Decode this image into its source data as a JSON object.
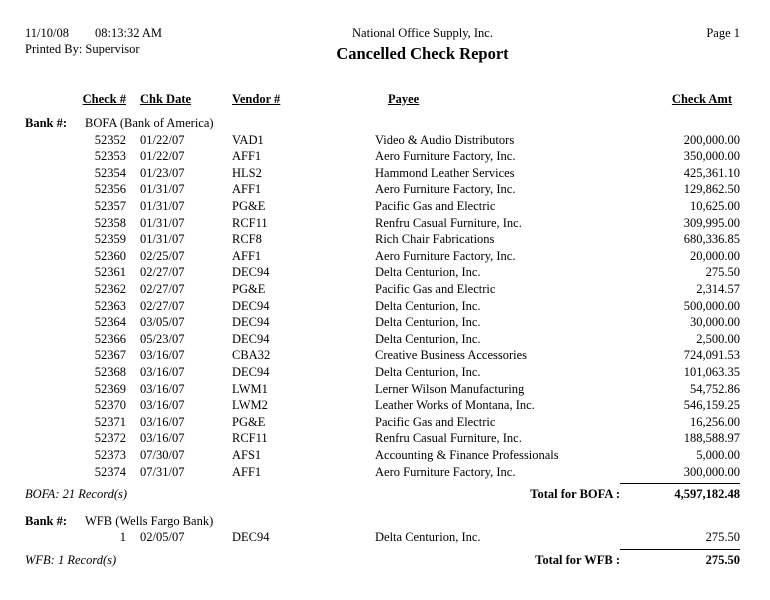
{
  "header": {
    "date": "11/10/08",
    "time": "08:13:32 AM",
    "printed_by": "Printed By: Supervisor",
    "company": "National Office Supply, Inc.",
    "title": "Cancelled Check Report",
    "page": "Page 1"
  },
  "columns": {
    "check": "Check #",
    "date": "Chk Date",
    "vendor": "Vendor #",
    "payee": "Payee",
    "amount": "Check Amt"
  },
  "bank_label": "Bank #:",
  "text_color": "#000000",
  "background_color": "#ffffff",
  "banks": [
    {
      "name": "BOFA (Bank of America)",
      "rows": [
        {
          "check": "52352",
          "date": "01/22/07",
          "vendor": "VAD1",
          "payee": "Video & Audio Distributors",
          "amount": "200,000.00"
        },
        {
          "check": "52353",
          "date": "01/22/07",
          "vendor": "AFF1",
          "payee": "Aero Furniture Factory, Inc.",
          "amount": "350,000.00"
        },
        {
          "check": "52354",
          "date": "01/23/07",
          "vendor": "HLS2",
          "payee": "Hammond Leather Services",
          "amount": "425,361.10"
        },
        {
          "check": "52356",
          "date": "01/31/07",
          "vendor": "AFF1",
          "payee": "Aero Furniture Factory, Inc.",
          "amount": "129,862.50"
        },
        {
          "check": "52357",
          "date": "01/31/07",
          "vendor": "PG&E",
          "payee": "Pacific Gas and Electric",
          "amount": "10,625.00"
        },
        {
          "check": "52358",
          "date": "01/31/07",
          "vendor": "RCF11",
          "payee": "Renfru Casual Furniture, Inc.",
          "amount": "309,995.00"
        },
        {
          "check": "52359",
          "date": "01/31/07",
          "vendor": "RCF8",
          "payee": "Rich Chair Fabrications",
          "amount": "680,336.85"
        },
        {
          "check": "52360",
          "date": "02/25/07",
          "vendor": "AFF1",
          "payee": "Aero Furniture Factory, Inc.",
          "amount": "20,000.00"
        },
        {
          "check": "52361",
          "date": "02/27/07",
          "vendor": "DEC94",
          "payee": "Delta Centurion, Inc.",
          "amount": "275.50"
        },
        {
          "check": "52362",
          "date": "02/27/07",
          "vendor": "PG&E",
          "payee": "Pacific Gas and Electric",
          "amount": "2,314.57"
        },
        {
          "check": "52363",
          "date": "02/27/07",
          "vendor": "DEC94",
          "payee": "Delta Centurion, Inc.",
          "amount": "500,000.00"
        },
        {
          "check": "52364",
          "date": "03/05/07",
          "vendor": "DEC94",
          "payee": "Delta Centurion, Inc.",
          "amount": "30,000.00"
        },
        {
          "check": "52366",
          "date": "05/23/07",
          "vendor": "DEC94",
          "payee": "Delta Centurion, Inc.",
          "amount": "2,500.00"
        },
        {
          "check": "52367",
          "date": "03/16/07",
          "vendor": "CBA32",
          "payee": "Creative Business Accessories",
          "amount": "724,091.53"
        },
        {
          "check": "52368",
          "date": "03/16/07",
          "vendor": "DEC94",
          "payee": "Delta Centurion, Inc.",
          "amount": "101,063.35"
        },
        {
          "check": "52369",
          "date": "03/16/07",
          "vendor": "LWM1",
          "payee": "Lerner Wilson Manufacturing",
          "amount": "54,752.86"
        },
        {
          "check": "52370",
          "date": "03/16/07",
          "vendor": "LWM2",
          "payee": "Leather Works of Montana, Inc.",
          "amount": "546,159.25"
        },
        {
          "check": "52371",
          "date": "03/16/07",
          "vendor": "PG&E",
          "payee": "Pacific Gas and Electric",
          "amount": "16,256.00"
        },
        {
          "check": "52372",
          "date": "03/16/07",
          "vendor": "RCF11",
          "payee": "Renfru Casual Furniture, Inc.",
          "amount": "188,588.97"
        },
        {
          "check": "52373",
          "date": "07/30/07",
          "vendor": "AFS1",
          "payee": "Accounting & Finance Professionals",
          "amount": "5,000.00"
        },
        {
          "check": "52374",
          "date": "07/31/07",
          "vendor": "AFF1",
          "payee": "Aero Furniture Factory, Inc.",
          "amount": "300,000.00"
        }
      ],
      "record_count": "BOFA: 21 Record(s)",
      "total_label": "Total for BOFA :",
      "total_amount": "4,597,182.48"
    },
    {
      "name": "WFB (Wells Fargo Bank)",
      "rows": [
        {
          "check": "1",
          "date": "02/05/07",
          "vendor": "DEC94",
          "payee": "Delta Centurion, Inc.",
          "amount": "275.50"
        }
      ],
      "record_count": "WFB: 1 Record(s)",
      "total_label": "Total for WFB :",
      "total_amount": "275.50"
    }
  ]
}
